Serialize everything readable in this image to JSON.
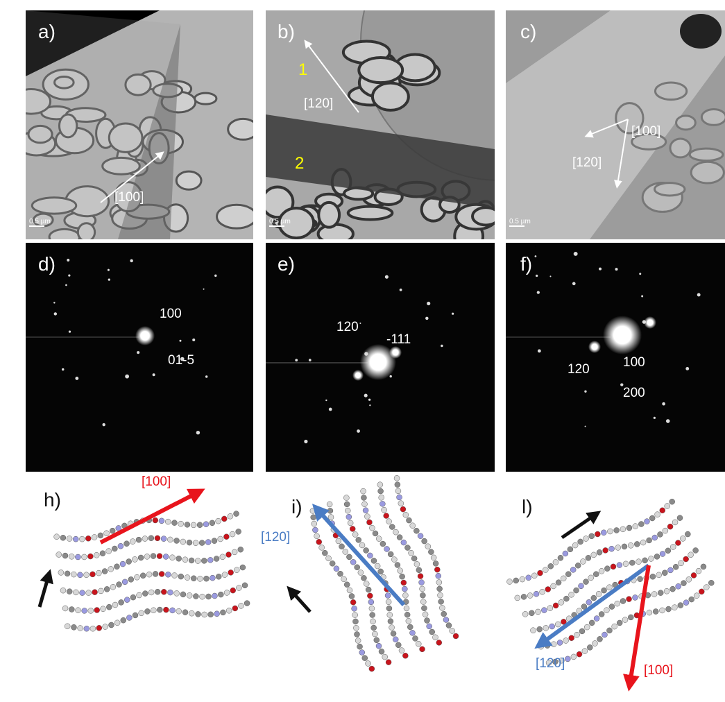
{
  "panels": [
    {
      "label": "a)",
      "annotations": [
        "[100]"
      ],
      "scale_bar": "0.5 µm"
    },
    {
      "label": "b)",
      "annotations": [
        "1",
        "[120]",
        "2"
      ],
      "scale_bar": "0.5 µm"
    },
    {
      "label": "c)",
      "annotations": [
        "[100]",
        "[120]"
      ],
      "scale_bar": "0.5 µm"
    },
    {
      "label": "d)",
      "annotations": [
        "100",
        "01-5"
      ]
    },
    {
      "label": "e)",
      "annotations": [
        "120",
        "-111"
      ]
    },
    {
      "label": "f)",
      "annotations": [
        "120",
        "100",
        "200"
      ]
    },
    {
      "label": "h)",
      "annotations": [
        "[100]"
      ]
    },
    {
      "label": "i)",
      "annotations": [
        "[120]"
      ]
    },
    {
      "label": "l)",
      "annotations": [
        "[120]",
        "[100]"
      ]
    }
  ]
}
